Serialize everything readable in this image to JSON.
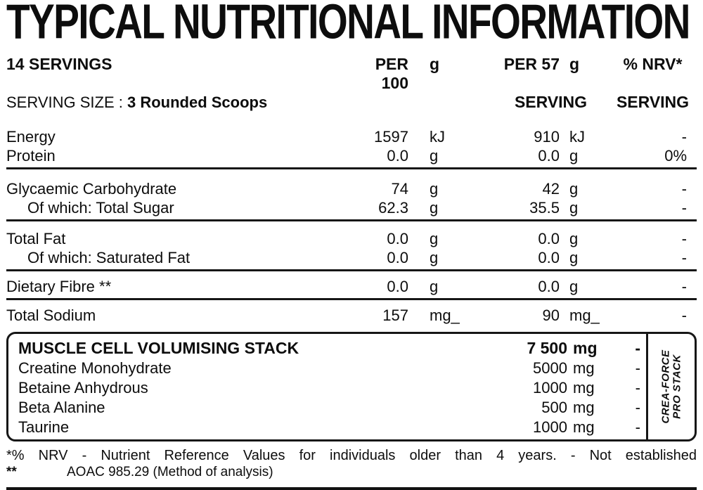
{
  "title": "TYPICAL NUTRITIONAL INFORMATION",
  "header": {
    "servings": "14 SERVINGS",
    "serving_size_label": "SERVING SIZE :",
    "serving_size_value": "3 Rounded Scoops",
    "col_per100": "PER 100",
    "col_per100_unit": "g",
    "col_per57": "PER 57",
    "col_per57_unit": "g",
    "col_nrv": "% NRV*",
    "col_per57_sub": "SERVING",
    "col_nrv_sub": "SERVING"
  },
  "table": {
    "rows": [
      {
        "label": "Energy",
        "per100_value": "1597",
        "per100_unit": "kJ",
        "per57_value": "910",
        "per57_unit": "kJ",
        "nrv": "-"
      },
      {
        "label": "Protein",
        "per100_value": "0.0",
        "per100_unit": "g",
        "per57_value": "0.0",
        "per57_unit": "g",
        "nrv": "0%"
      },
      {
        "label": "Glycaemic Carbohydrate",
        "per100_value": "74",
        "per100_unit": "g",
        "per57_value": "42",
        "per57_unit": "g",
        "nrv": "-"
      },
      {
        "label": "Of which: Total Sugar",
        "per100_value": "62.3",
        "per100_unit": "g",
        "per57_value": "35.5",
        "per57_unit": "g",
        "nrv": "-"
      },
      {
        "label": "Total Fat",
        "per100_value": "0.0",
        "per100_unit": "g",
        "per57_value": "0.0",
        "per57_unit": "g",
        "nrv": "-"
      },
      {
        "label": "Of which: Saturated Fat",
        "per100_value": "0.0",
        "per100_unit": "g",
        "per57_value": "0.0",
        "per57_unit": "g",
        "nrv": "-"
      },
      {
        "label": "Dietary Fibre **",
        "per100_value": "0.0",
        "per100_unit": "g",
        "per57_value": "0.0",
        "per57_unit": "g",
        "nrv": "-"
      },
      {
        "label": "Total Sodium",
        "per100_value": "157",
        "per100_unit": "mg_",
        "per57_value": "90",
        "per57_unit": "mg_",
        "nrv": "-"
      }
    ]
  },
  "stack_box": {
    "title": "MUSCLE CELL VOLUMISING STACK",
    "title_value": "7 500",
    "title_unit": "mg",
    "title_nrv": "-",
    "items": [
      {
        "label": "Creatine Monohydrate",
        "value": "5000",
        "unit": "mg",
        "nrv": "-"
      },
      {
        "label": "Betaine Anhydrous",
        "value": "1000",
        "unit": "mg",
        "nrv": "-"
      },
      {
        "label": "Beta Alanine",
        "value": "500",
        "unit": "mg",
        "nrv": "-"
      },
      {
        "label": "Taurine",
        "value": "1000",
        "unit": "mg",
        "nrv": "-"
      }
    ],
    "side_label_line1": "CREA-FORCE",
    "side_label_line2": "PRO STACK"
  },
  "footnotes": {
    "line1": "*% NRV - Nutrient Reference Values for individuals older than 4 years. - Not established",
    "line2_marker": "**",
    "line2_text": "AOAC 985.29 (Method of analysis)"
  },
  "colors": {
    "ink": "#0d0d0d",
    "background": "#ffffff"
  }
}
